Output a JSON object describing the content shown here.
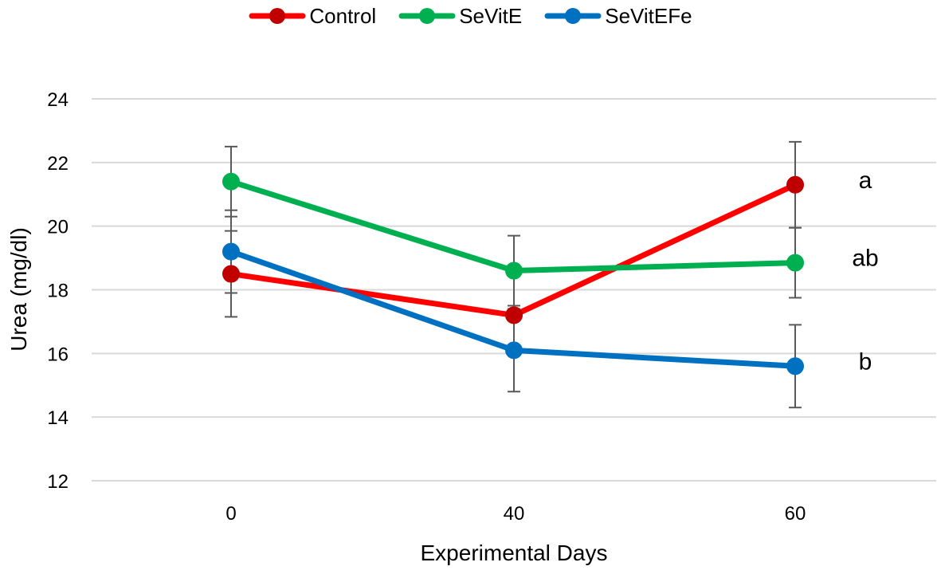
{
  "chart_data": {
    "type": "line",
    "title": "",
    "xlabel": "Experimental Days",
    "ylabel": "Urea (mg/dl)",
    "categories": [
      "0",
      "40",
      "60"
    ],
    "ylim": [
      12,
      24
    ],
    "yticks": [
      12,
      14,
      16,
      18,
      20,
      22,
      24
    ],
    "grid": true,
    "legend_position": "top-center",
    "series": [
      {
        "name": "Control",
        "color": "#FF0000",
        "marker_color": "#C00000",
        "values": [
          18.5,
          17.2,
          21.3
        ],
        "errors": [
          1.35,
          0.1,
          1.35
        ],
        "label": "a"
      },
      {
        "name": "SeVitE",
        "color": "#00B050",
        "marker_color": "#00B050",
        "values": [
          21.4,
          18.6,
          18.85
        ],
        "errors": [
          1.1,
          1.1,
          1.1
        ],
        "label": "ab"
      },
      {
        "name": "SeVitEFe",
        "color": "#0070C0",
        "marker_color": "#0070C0",
        "values": [
          19.2,
          16.1,
          15.6
        ],
        "errors": [
          1.3,
          1.3,
          1.3
        ],
        "label": "b"
      }
    ]
  }
}
